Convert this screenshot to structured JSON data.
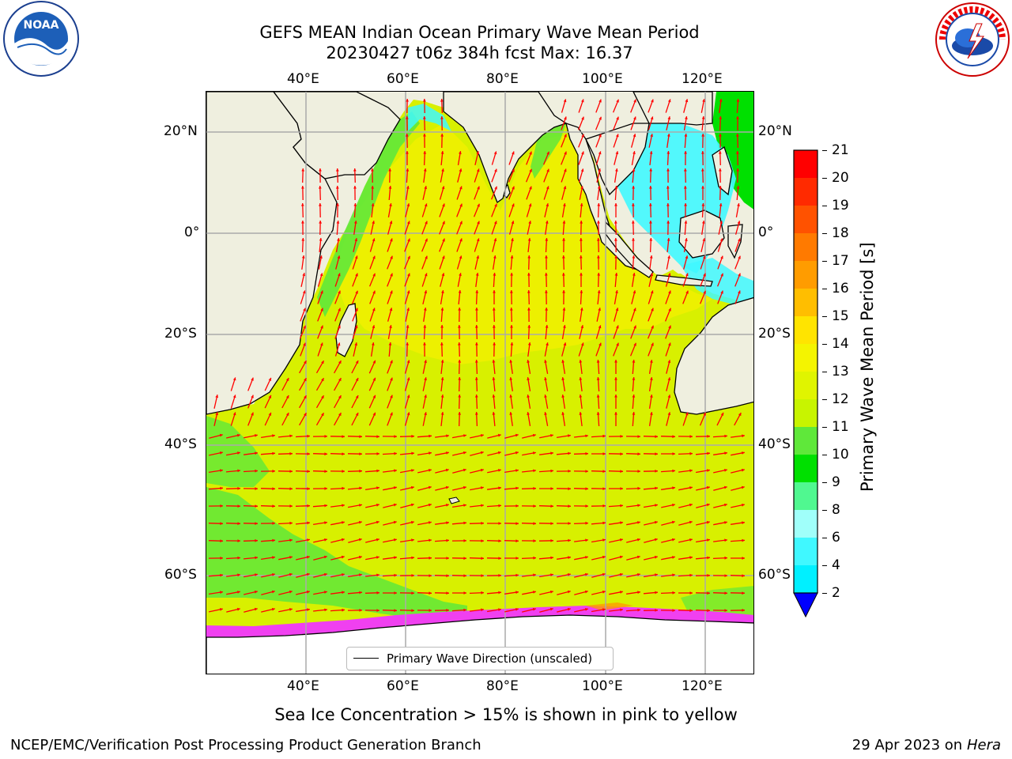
{
  "header": {
    "title_line1": "GEFS MEAN Indian Ocean Primary Wave Mean Period",
    "title_line2": "20230427 t06z 384h fcst   Max: 16.37"
  },
  "logos": {
    "left": {
      "name": "noaa-logo",
      "text": "NOAA",
      "ring_text": "NATIONAL OCEANIC AND ATMOSPHERIC ADMINISTRATION · U.S. DEPARTMENT OF COMMERCE"
    },
    "right": {
      "name": "nws-logo",
      "ring_text": "NATIONAL WEATHER SERVICE"
    }
  },
  "map": {
    "lon_ticks": [
      "40°E",
      "60°E",
      "80°E",
      "100°E",
      "120°E"
    ],
    "lat_ticks_left": [
      "20°N",
      "0°",
      "20°S",
      "40°S",
      "60°S"
    ],
    "lat_ticks_right": [
      "20°N",
      "0°",
      "20°S",
      "40°S",
      "60°S"
    ],
    "legend_label": "Primary Wave Direction (unscaled)",
    "colors": {
      "land": "#efefdf",
      "ocean_main": "#d8f000",
      "ocean_yellow": "#f0f000",
      "green": "#5fe83a",
      "bright_green": "#00e000",
      "cyan": "#40f8ff",
      "ice_pink": "#f040f0",
      "arrow": "#ff0000"
    }
  },
  "colorbar": {
    "label": "Primary Wave Mean Period [s]",
    "ticks": [
      "21",
      "20",
      "19",
      "18",
      "17",
      "16",
      "15",
      "14",
      "13",
      "12",
      "11",
      "10",
      "9",
      "8",
      "6",
      "4",
      "2"
    ],
    "colors_top_to_bottom": [
      "#ff0000",
      "#ff2a00",
      "#ff5200",
      "#ff7a00",
      "#ff9c00",
      "#ffbe00",
      "#ffe400",
      "#f4f400",
      "#e0f400",
      "#c8f400",
      "#5fe83a",
      "#00e000",
      "#50f890",
      "#a0fffa",
      "#40f8ff",
      "#00f0ff",
      "#0078ff"
    ],
    "under_color": "#0000ff"
  },
  "footer": {
    "subtitle": "Sea Ice Concentration > 15% is shown in pink to yellow",
    "credit": "NCEP/EMC/Verification Post Processing Product Generation Branch",
    "date_prefix": "29 Apr 2023 on ",
    "machine": "Hera"
  }
}
